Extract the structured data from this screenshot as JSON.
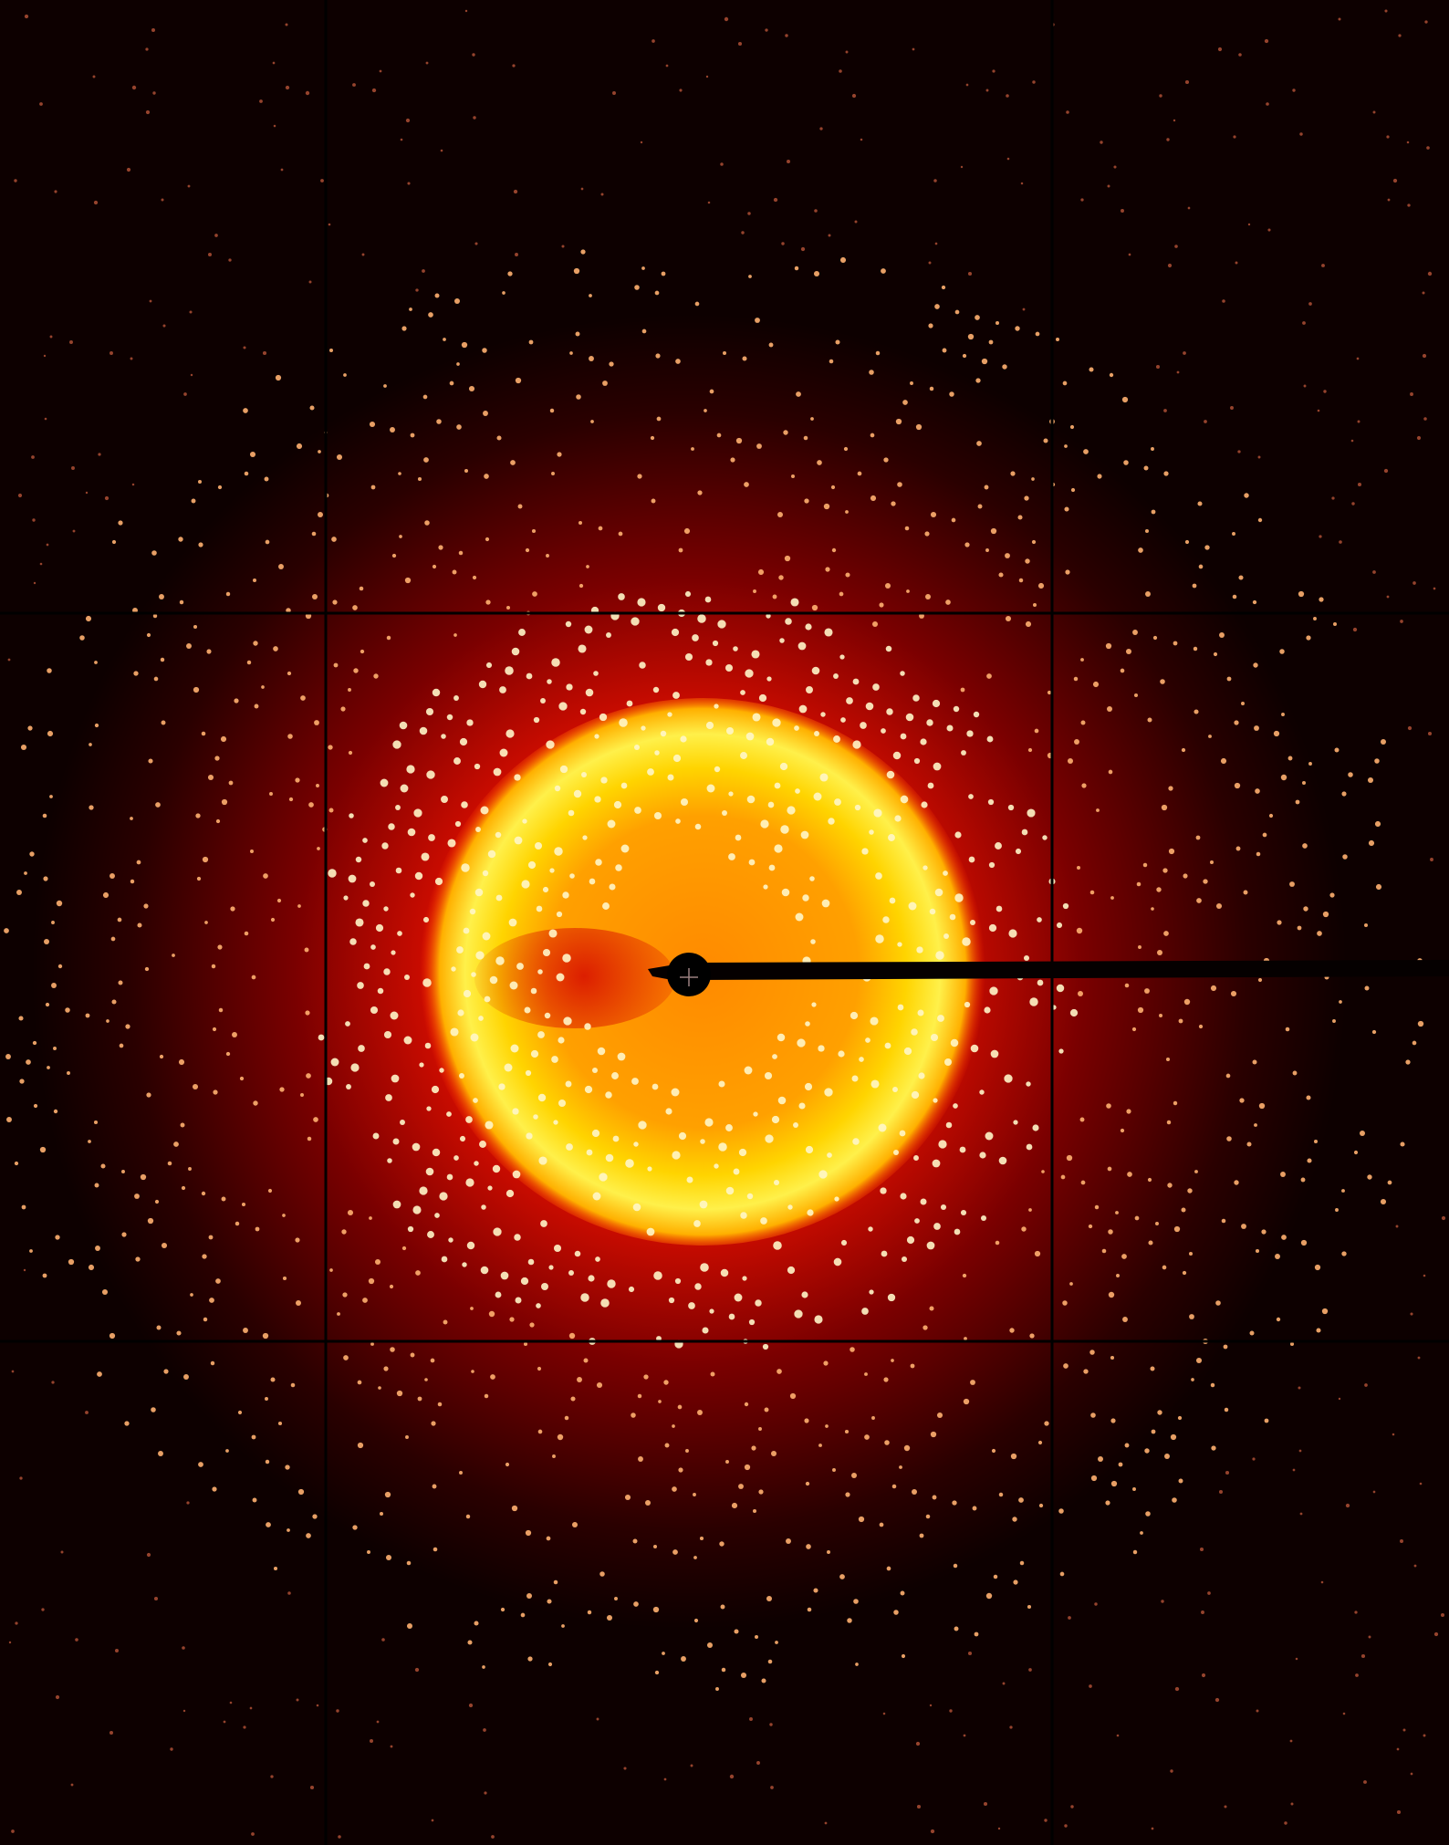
{
  "image": {
    "kind": "x-ray diffraction pattern",
    "colormap": [
      "#1a0000",
      "#3a0000",
      "#6e0000",
      "#c00000",
      "#ff1a00",
      "#ff6a00",
      "#ffb000",
      "#ffe000",
      "#ffff80"
    ],
    "accent_colors": {
      "background": "#0d0000",
      "outer_glow": "#8b0000",
      "mid_glow": "#ff2000",
      "inner_disc": "#ff8c00",
      "ring": "#ffe600",
      "spot": "#fff2c0",
      "beamstop": "#000000",
      "panel_gap": "#000000"
    },
    "detector_grid": {
      "columns": 3,
      "rows": 3
    },
    "center_marker_icon": "crosshair-icon"
  }
}
